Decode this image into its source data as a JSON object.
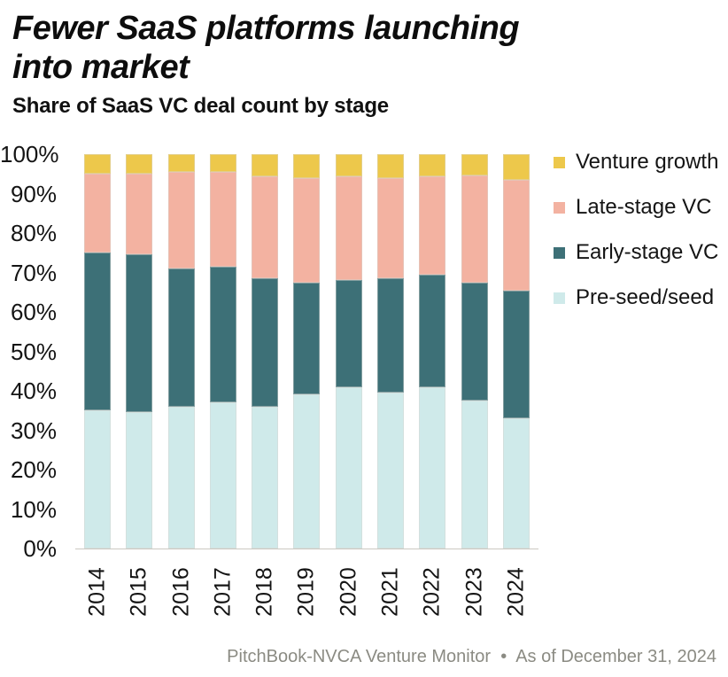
{
  "chart_data": {
    "type": "bar",
    "stacked": true,
    "title_line1": "Fewer SaaS platforms launching",
    "title_line2": "into market",
    "subtitle": "Share of SaaS VC deal count by stage",
    "source": "PitchBook-NVCA Venture Monitor  •  As of December 31, 2024",
    "categories": [
      "2014",
      "2015",
      "2016",
      "2017",
      "2018",
      "2019",
      "2020",
      "2021",
      "2022",
      "2023",
      "2024"
    ],
    "series": [
      {
        "name": "Pre-seed/seed",
        "color": "#cfeaea",
        "values": [
          35,
          34.5,
          36,
          37,
          36,
          39,
          41,
          39.5,
          41,
          37.5,
          33
        ]
      },
      {
        "name": "Early-stage VC",
        "color": "#3d7077",
        "values": [
          40,
          40,
          35,
          34.5,
          32.5,
          28.5,
          27,
          29,
          28.5,
          30,
          32.5
        ]
      },
      {
        "name": "Late-stage VC",
        "color": "#f3b2a1",
        "values": [
          20,
          20.5,
          24.5,
          24,
          26,
          26.5,
          26.5,
          25.5,
          25,
          27,
          28
        ]
      },
      {
        "name": "Venture growth",
        "color": "#edc84b",
        "values": [
          5,
          5,
          4.5,
          4.5,
          5.5,
          6,
          5.5,
          6,
          5.5,
          5.5,
          6.5
        ]
      }
    ],
    "y_ticks": [
      "100%",
      "90%",
      "80%",
      "70%",
      "60%",
      "50%",
      "40%",
      "30%",
      "20%",
      "10%",
      "0%"
    ],
    "ylim": [
      0,
      100
    ],
    "grid": false,
    "legend_position": "right",
    "legend_order_top_to_bottom": [
      "Venture growth",
      "Late-stage VC",
      "Early-stage VC",
      "Pre-seed/seed"
    ]
  }
}
